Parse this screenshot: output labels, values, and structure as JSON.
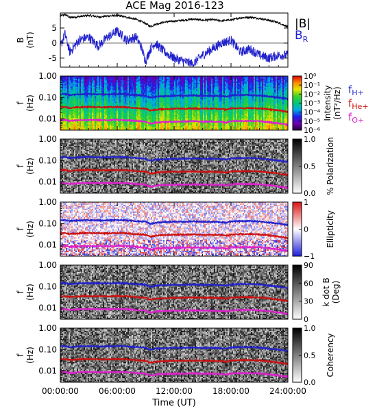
{
  "chart_data": [
    {
      "type": "line",
      "title": "ACE Mag 2016-123",
      "ylabel": "B\n(nT)",
      "ylim": [
        -8,
        10
      ],
      "yticks": [
        5,
        0,
        -5
      ],
      "ytick_labels": [
        "5",
        "0",
        "-5"
      ],
      "legend": [
        {
          "name": "|B|",
          "color": "#000000"
        },
        {
          "name": "B",
          "sub": "R",
          "color": "#2222cc"
        }
      ],
      "series": [
        {
          "name": "|B|",
          "color": "#000000",
          "x": [
            0,
            0.5,
            1,
            2,
            3,
            4,
            5,
            6,
            7,
            8,
            9,
            9.5,
            10,
            11,
            12,
            13,
            14,
            15,
            16,
            17,
            18,
            19,
            20,
            21,
            22,
            23,
            24
          ],
          "y": [
            9,
            9.5,
            8.5,
            8.8,
            9.2,
            8.7,
            9.0,
            9.2,
            8.6,
            7.9,
            6.5,
            5.5,
            6.2,
            7.0,
            7.3,
            7.6,
            8.0,
            7.6,
            7.8,
            7.4,
            7.7,
            8.4,
            8.6,
            8.2,
            7.6,
            6.8,
            5.4
          ]
        },
        {
          "name": "B_R",
          "color": "#2222cc",
          "x": [
            0,
            0.5,
            1,
            2,
            3,
            4,
            5,
            6,
            7,
            8,
            8.5,
            9,
            9.5,
            10,
            11,
            12,
            13,
            14,
            15,
            16,
            17,
            18,
            19,
            20,
            21,
            22,
            23,
            24
          ],
          "y": [
            -1,
            3,
            -3,
            1,
            2,
            -1,
            2,
            4,
            1,
            2,
            -1,
            -6,
            -2,
            0,
            -3,
            -5,
            -6,
            -7,
            -4,
            -2,
            0,
            1,
            -3,
            -2,
            -4,
            -5,
            -4,
            -4
          ]
        }
      ]
    },
    {
      "type": "heatmap",
      "ylabel": "f\n(Hz)",
      "ylog": true,
      "ylim": [
        0.003,
        1.0
      ],
      "yticks": [
        1.0,
        0.1,
        0.01
      ],
      "ytick_labels": [
        "1.00",
        "0.10",
        "0.01"
      ],
      "colorbar": {
        "label": "Intensity\n(nT²/Hz)",
        "palette": "rainbow",
        "tick_labels": [
          "10⁰",
          "10⁻¹",
          "10⁻²",
          "10⁻³",
          "10⁻⁴",
          "10⁻⁵",
          "10⁻⁶"
        ]
      },
      "legend": [
        {
          "name": "f",
          "sub": "H+",
          "color": "#2222cc"
        },
        {
          "name": "f",
          "sub": "He+",
          "color": "#cc1111"
        },
        {
          "name": "f",
          "sub": "O+",
          "color": "#dd22cc"
        }
      ]
    },
    {
      "type": "heatmap",
      "ylabel": "f\n(Hz)",
      "ylog": true,
      "ylim": [
        0.003,
        1.0
      ],
      "yticks": [
        1.0,
        0.1,
        0.01
      ],
      "ytick_labels": [
        "1.00",
        "0.10",
        "0.01"
      ],
      "colorbar": {
        "label": "% Polarization",
        "palette": "gray",
        "tick_labels": [
          "1.0",
          "0.5",
          "0.0"
        ]
      }
    },
    {
      "type": "heatmap",
      "ylabel": "f\n(Hz)",
      "ylog": true,
      "ylim": [
        0.003,
        1.0
      ],
      "yticks": [
        1.0,
        0.1,
        0.01
      ],
      "ytick_labels": [
        "1.00",
        "0.10",
        "0.01"
      ],
      "colorbar": {
        "label": "Ellipticity",
        "palette": "bwr",
        "tick_labels": [
          "1",
          "0",
          "−1"
        ]
      }
    },
    {
      "type": "heatmap",
      "ylabel": "f\n(Hz)",
      "ylog": true,
      "ylim": [
        0.003,
        1.0
      ],
      "yticks": [
        1.0,
        0.1,
        0.01
      ],
      "ytick_labels": [
        "1.00",
        "0.10",
        "0.01"
      ],
      "colorbar": {
        "label": "k dot B\n(Deg)",
        "palette": "gray",
        "tick_labels": [
          "90",
          "60",
          "30",
          "0"
        ]
      }
    },
    {
      "type": "heatmap",
      "ylabel": "f\n(Hz)",
      "ylog": true,
      "ylim": [
        0.003,
        1.0
      ],
      "yticks": [
        1.0,
        0.1,
        0.01
      ],
      "ytick_labels": [
        "1.00",
        "0.10",
        "0.01"
      ],
      "colorbar": {
        "label": "Coherency",
        "palette": "gray",
        "tick_labels": [
          "1.0",
          "0.5",
          "0.0"
        ]
      }
    }
  ],
  "gyrofrequency_lines": {
    "x": [
      0,
      0.5,
      1,
      1.5,
      2,
      3,
      4,
      5,
      6,
      7,
      8,
      9,
      9.4,
      9.7,
      10,
      11,
      12,
      13,
      14,
      15,
      16,
      17,
      17.5,
      18,
      19,
      20,
      21,
      22,
      23,
      24
    ],
    "f_H+": [
      0.14,
      0.145,
      0.13,
      0.135,
      0.14,
      0.145,
      0.14,
      0.14,
      0.145,
      0.14,
      0.13,
      0.12,
      0.1,
      0.1,
      0.11,
      0.115,
      0.12,
      0.12,
      0.125,
      0.12,
      0.12,
      0.115,
      0.11,
      0.125,
      0.13,
      0.13,
      0.125,
      0.11,
      0.1,
      0.085
    ],
    "f_He+": [
      0.035,
      0.036,
      0.032,
      0.034,
      0.035,
      0.036,
      0.035,
      0.035,
      0.036,
      0.035,
      0.032,
      0.03,
      0.025,
      0.025,
      0.027,
      0.029,
      0.03,
      0.03,
      0.031,
      0.03,
      0.03,
      0.029,
      0.027,
      0.031,
      0.032,
      0.032,
      0.031,
      0.028,
      0.025,
      0.021
    ],
    "f_O+": [
      0.0088,
      0.009,
      0.008,
      0.0085,
      0.0088,
      0.009,
      0.0088,
      0.0088,
      0.009,
      0.0088,
      0.008,
      0.0075,
      0.0062,
      0.0062,
      0.0068,
      0.0072,
      0.0075,
      0.0075,
      0.0078,
      0.0075,
      0.0075,
      0.0072,
      0.0068,
      0.0078,
      0.008,
      0.008,
      0.0078,
      0.007,
      0.0062,
      0.0053
    ],
    "colors": {
      "f_H+": "#2222cc",
      "f_He+": "#cc1111",
      "f_O+": "#dd22cc"
    }
  },
  "xaxis": {
    "label": "Time (UT)",
    "xlim": [
      0,
      24
    ],
    "ticks": [
      0,
      6,
      12,
      18,
      24
    ],
    "tick_labels": [
      "00:00:00",
      "06:00:00",
      "12:00:00",
      "18:00:00",
      "24:00:00"
    ]
  }
}
